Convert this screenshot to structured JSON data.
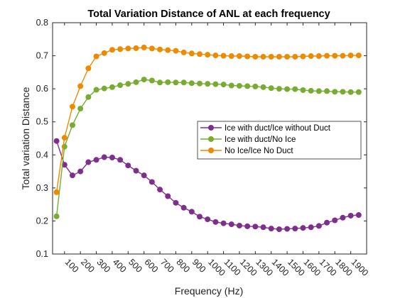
{
  "chart_data": {
    "type": "line",
    "title": "Total Variation Distance of ANL at each frequency",
    "xlabel": "Frequency (Hz)",
    "ylabel": "Total variation Distance",
    "xlim": [
      25,
      2000
    ],
    "ylim": [
      0.1,
      0.8
    ],
    "x_ticks": [
      100,
      200,
      300,
      400,
      500,
      600,
      700,
      800,
      900,
      1000,
      1100,
      1200,
      1300,
      1400,
      1500,
      1600,
      1700,
      1800,
      1900
    ],
    "y_ticks": [
      0.1,
      0.2,
      0.3,
      0.4,
      0.5,
      0.6,
      0.7,
      0.8
    ],
    "grid": false,
    "legend_position": "right-center",
    "x": [
      50,
      100,
      150,
      200,
      250,
      300,
      350,
      400,
      450,
      500,
      550,
      600,
      650,
      700,
      750,
      800,
      850,
      900,
      950,
      1000,
      1050,
      1100,
      1150,
      1200,
      1250,
      1300,
      1350,
      1400,
      1450,
      1500,
      1550,
      1600,
      1650,
      1700,
      1750,
      1800,
      1850,
      1900,
      1950
    ],
    "series": [
      {
        "name": "Ice with duct/Ice without Duct",
        "color": "#7E2F8E",
        "values": [
          0.442,
          0.37,
          0.338,
          0.35,
          0.378,
          0.385,
          0.393,
          0.392,
          0.385,
          0.368,
          0.352,
          0.338,
          0.318,
          0.295,
          0.275,
          0.255,
          0.24,
          0.228,
          0.213,
          0.205,
          0.197,
          0.193,
          0.19,
          0.186,
          0.184,
          0.183,
          0.181,
          0.177,
          0.175,
          0.176,
          0.177,
          0.179,
          0.181,
          0.185,
          0.195,
          0.202,
          0.21,
          0.216,
          0.218
        ]
      },
      {
        "name": "Ice with duct/No Ice",
        "color": "#77AC30",
        "values": [
          0.214,
          0.425,
          0.49,
          0.54,
          0.575,
          0.597,
          0.601,
          0.605,
          0.611,
          0.615,
          0.62,
          0.628,
          0.625,
          0.619,
          0.62,
          0.619,
          0.619,
          0.617,
          0.616,
          0.615,
          0.614,
          0.613,
          0.61,
          0.609,
          0.608,
          0.607,
          0.605,
          0.602,
          0.6,
          0.599,
          0.599,
          0.596,
          0.594,
          0.593,
          0.593,
          0.591,
          0.591,
          0.59,
          0.59
        ]
      },
      {
        "name": "No Ice/Ice No Duct",
        "color": "#EE8A00",
        "values": [
          0.287,
          0.452,
          0.546,
          0.608,
          0.662,
          0.698,
          0.708,
          0.718,
          0.72,
          0.722,
          0.723,
          0.725,
          0.722,
          0.719,
          0.717,
          0.715,
          0.71,
          0.707,
          0.705,
          0.703,
          0.701,
          0.7,
          0.699,
          0.699,
          0.698,
          0.697,
          0.697,
          0.697,
          0.697,
          0.697,
          0.697,
          0.698,
          0.699,
          0.699,
          0.7,
          0.7,
          0.7,
          0.701,
          0.701
        ]
      }
    ]
  }
}
